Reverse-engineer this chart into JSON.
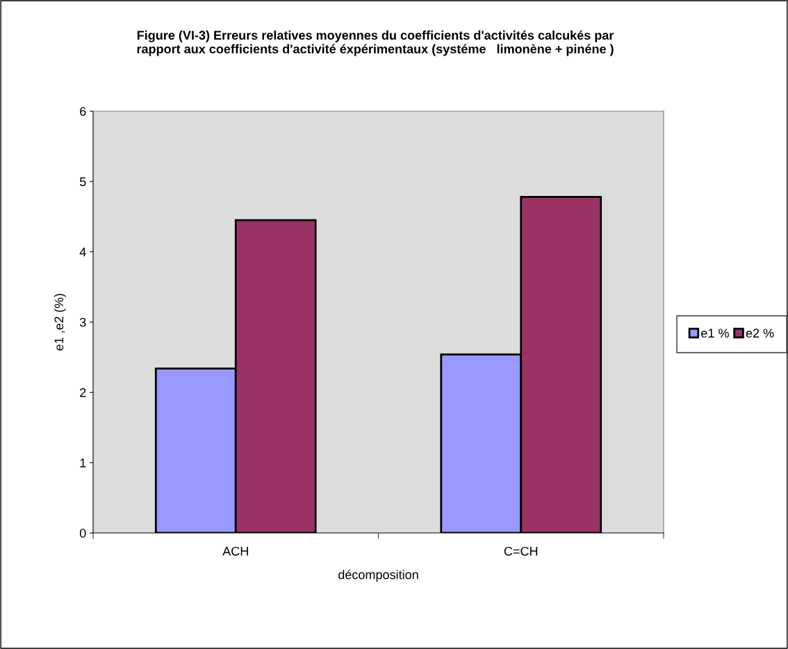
{
  "chart_data": {
    "type": "bar",
    "title": "Figure (VI-3) Erreurs relatives moyennes du coefficients d'activités calcukés par\nrapport aux coefficients d'activité éxpérimentaux (systéme   limonène + pinéne )",
    "xlabel": "décomposition",
    "ylabel": "e1 ,e2 (%)",
    "categories": [
      "ACH",
      "C=CH"
    ],
    "series": [
      {
        "name": "e1 %",
        "color": "#9999ff",
        "values": [
          2.34,
          2.54
        ]
      },
      {
        "name": "e2 %",
        "color": "#993366",
        "values": [
          4.45,
          4.78
        ]
      }
    ],
    "ylim": [
      0,
      6
    ],
    "yticks": [
      0,
      1,
      2,
      3,
      4,
      5,
      6
    ],
    "grid": false,
    "legend": "right"
  }
}
